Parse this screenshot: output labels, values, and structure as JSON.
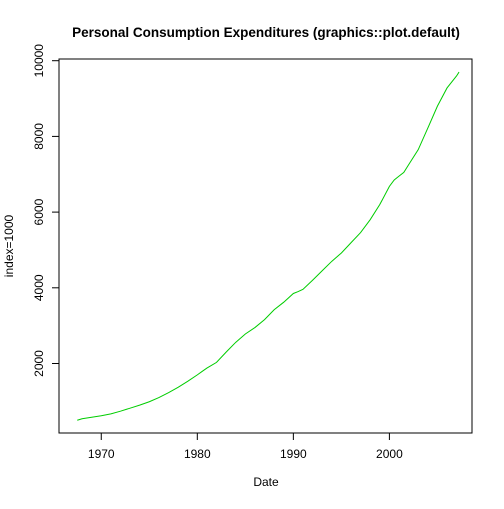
{
  "chart_data": {
    "type": "line",
    "title": "Personal Consumption Expenditures (graphics::plot.default)",
    "xlabel": "Date",
    "ylabel": "index=1000",
    "xlim": [
      1965.6,
      2008.6
    ],
    "ylim": [
      164,
      10045
    ],
    "x_ticks": [
      1970,
      1980,
      1990,
      2000
    ],
    "y_ticks": [
      2000,
      4000,
      6000,
      8000,
      10000
    ],
    "grid": false,
    "line_color": "#00cd00",
    "series": [
      {
        "x": [
          1967.5,
          1968,
          1969,
          1970,
          1971,
          1972,
          1973,
          1974,
          1975,
          1976,
          1977,
          1978,
          1979,
          1980,
          1980.5,
          1981,
          1982,
          1983,
          1984,
          1985,
          1986,
          1987,
          1988,
          1989,
          1990,
          1990.5,
          1991,
          1992,
          1993,
          1994,
          1995,
          1996,
          1997,
          1998,
          1999,
          2000,
          2000.5,
          2001,
          2001.5,
          2002,
          2003,
          2004,
          2005,
          2006,
          2007,
          2007.25
        ],
        "y": [
          500,
          540,
          580,
          620,
          670,
          740,
          820,
          900,
          990,
          1100,
          1230,
          1370,
          1530,
          1700,
          1790,
          1880,
          2030,
          2300,
          2560,
          2780,
          2950,
          3160,
          3420,
          3620,
          3850,
          3900,
          3960,
          4200,
          4450,
          4700,
          4920,
          5190,
          5460,
          5800,
          6200,
          6680,
          6850,
          6950,
          7050,
          7250,
          7650,
          8220,
          8800,
          9280,
          9600,
          9700
        ]
      }
    ]
  }
}
